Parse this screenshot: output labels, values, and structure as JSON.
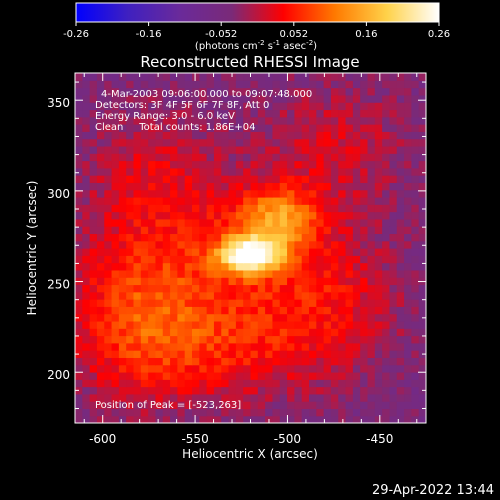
{
  "chart_data": {
    "type": "heatmap",
    "title": "Reconstructed RHESSI Image",
    "colorbar": {
      "ticks": [
        "-0.26",
        "-0.16",
        "-0.052",
        "0.052",
        "0.16",
        "0.26"
      ],
      "label": "(photons cm",
      "label_sup1": "-2",
      "label_mid": " s",
      "label_sup2": "-1",
      "label_mid2": " asec",
      "label_sup3": "-2",
      "label_end": ")",
      "range": [
        -0.26,
        0.26
      ],
      "colors": [
        "#0000ff",
        "#3f20c0",
        "#6a2a9a",
        "#7a2a78",
        "#ff0000",
        "#ff7a00",
        "#ffd24a",
        "#ffffff"
      ]
    },
    "annotations": [
      "4-Mar-2003 09:06:00.000 to 09:07:48.000",
      "Detectors: 3F 4F 5F 6F 7F 8F, Att 0",
      "Energy Range: 3.0 - 6.0 keV",
      "Clean     Total counts: 1.86E+04"
    ],
    "peak_label": "Position of Peak = [-523,263]",
    "peak": [
      -523,
      263
    ],
    "xlabel": "Heliocentric X (arcsec)",
    "ylabel": "Heliocentric Y (arcsec)",
    "xlim": [
      -615,
      -425
    ],
    "ylim": [
      172,
      365
    ],
    "xticks": [
      -600,
      -550,
      -500,
      -450
    ],
    "yticks": [
      200,
      250,
      300,
      350
    ],
    "xtick_labels": [
      "-600",
      "-550",
      "-500",
      "-450"
    ],
    "ytick_labels": [
      "200",
      "250",
      "300",
      "350"
    ],
    "emission_regions": [
      {
        "x": -520,
        "y": 265,
        "sx": 12,
        "sy": 7,
        "amp": 0.26
      },
      {
        "x": -505,
        "y": 285,
        "sx": 16,
        "sy": 12,
        "amp": 0.15
      },
      {
        "x": -555,
        "y": 255,
        "sx": 40,
        "sy": 35,
        "amp": 0.09
      },
      {
        "x": -480,
        "y": 240,
        "sx": 30,
        "sy": 30,
        "amp": 0.08
      },
      {
        "x": -585,
        "y": 225,
        "sx": 25,
        "sy": 30,
        "amp": 0.07
      },
      {
        "x": -475,
        "y": 325,
        "sx": 30,
        "sy": 25,
        "amp": 0.06
      },
      {
        "x": -575,
        "y": 315,
        "sx": 25,
        "sy": 25,
        "amp": 0.05
      },
      {
        "x": -540,
        "y": 210,
        "sx": 35,
        "sy": 20,
        "amp": 0.06
      }
    ]
  },
  "footer": {
    "date": "29-Apr-2022 13:44"
  }
}
